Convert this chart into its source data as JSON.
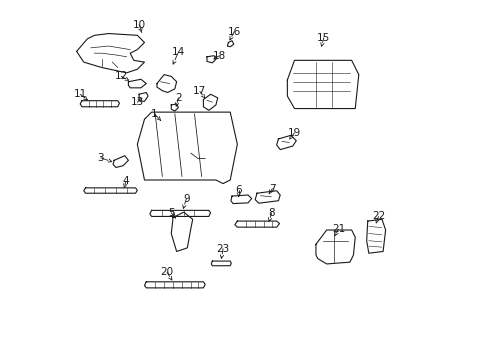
{
  "bg_color": "#ffffff",
  "line_color": "#1a1a1a",
  "label_data": [
    [
      10,
      0.205,
      0.935,
      0.215,
      0.905
    ],
    [
      14,
      0.315,
      0.858,
      0.296,
      0.815
    ],
    [
      12,
      0.155,
      0.79,
      0.178,
      0.778
    ],
    [
      11,
      0.04,
      0.74,
      0.068,
      0.718
    ],
    [
      13,
      0.2,
      0.718,
      0.214,
      0.73
    ],
    [
      1,
      0.248,
      0.685,
      0.272,
      0.66
    ],
    [
      2,
      0.315,
      0.73,
      0.308,
      0.704
    ],
    [
      16,
      0.471,
      0.915,
      0.458,
      0.89
    ],
    [
      18,
      0.43,
      0.848,
      0.413,
      0.838
    ],
    [
      17,
      0.375,
      0.748,
      0.39,
      0.728
    ],
    [
      15,
      0.722,
      0.898,
      0.715,
      0.872
    ],
    [
      19,
      0.64,
      0.632,
      0.625,
      0.613
    ],
    [
      3,
      0.098,
      0.562,
      0.138,
      0.548
    ],
    [
      4,
      0.168,
      0.496,
      0.163,
      0.477
    ],
    [
      9,
      0.337,
      0.447,
      0.328,
      0.418
    ],
    [
      6,
      0.484,
      0.472,
      0.484,
      0.452
    ],
    [
      7,
      0.578,
      0.476,
      0.568,
      0.46
    ],
    [
      5,
      0.295,
      0.408,
      0.308,
      0.392
    ],
    [
      8,
      0.576,
      0.408,
      0.568,
      0.382
    ],
    [
      23,
      0.44,
      0.308,
      0.435,
      0.278
    ],
    [
      20,
      0.283,
      0.242,
      0.298,
      0.218
    ],
    [
      21,
      0.763,
      0.362,
      0.752,
      0.342
    ],
    [
      22,
      0.875,
      0.398,
      0.868,
      0.378
    ]
  ]
}
